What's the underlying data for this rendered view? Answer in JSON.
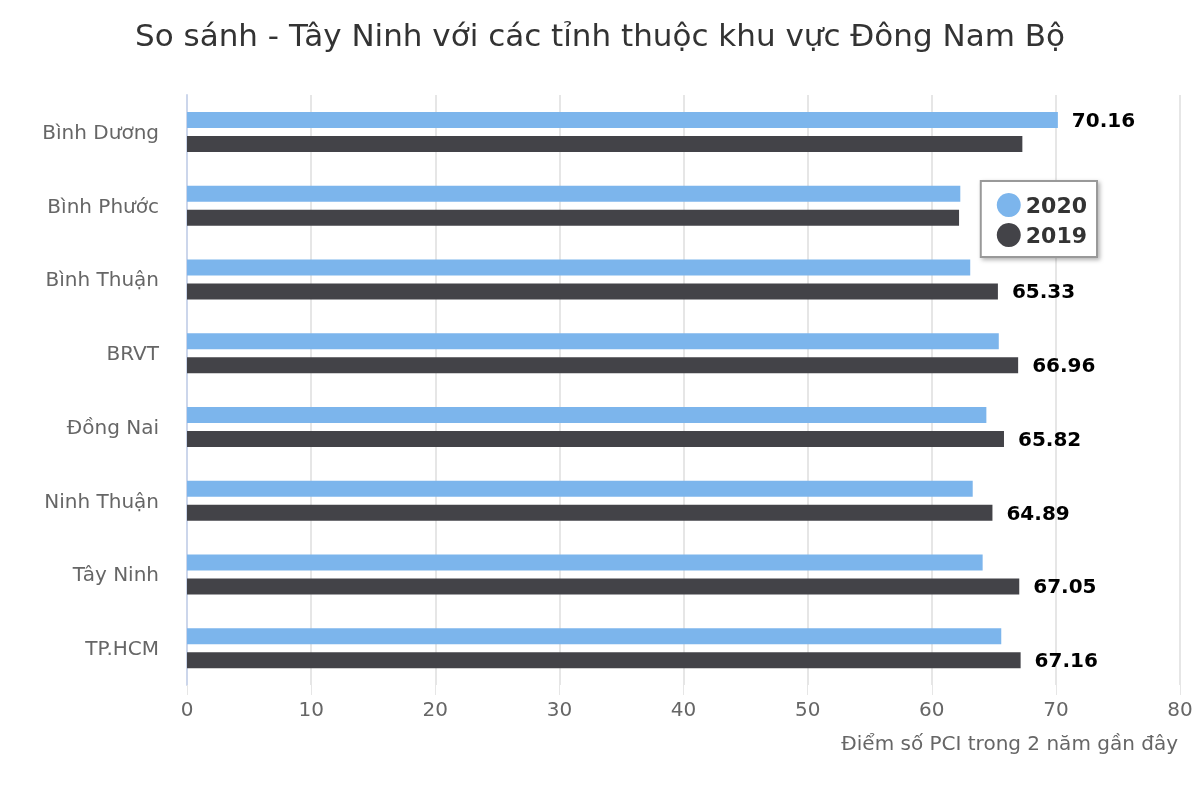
{
  "chart_data": {
    "type": "bar",
    "orientation": "horizontal",
    "title": "So sánh - Tây Ninh với các tỉnh thuộc khu vực Đông Nam Bộ",
    "xlabel": "Điểm số PCI trong 2 năm gần đây",
    "categories": [
      "Bình Dương",
      "Bình Phước",
      "Bình Thuận",
      "BRVT",
      "Đồng Nai",
      "Ninh Thuận",
      "Tây Ninh",
      "TP.HCM"
    ],
    "series": [
      {
        "name": "2020",
        "color": "#7cb5ec",
        "values": [
          70.16,
          62.3,
          63.1,
          65.4,
          64.4,
          63.3,
          64.1,
          65.6
        ],
        "value_labels": [
          "70.16",
          null,
          null,
          null,
          null,
          null,
          null,
          null
        ]
      },
      {
        "name": "2019",
        "color": "#434348",
        "values": [
          67.3,
          62.2,
          65.33,
          66.96,
          65.82,
          64.89,
          67.05,
          67.16
        ],
        "value_labels": [
          null,
          null,
          "65.33",
          "66.96",
          "65.82",
          "64.89",
          "67.05",
          "67.16"
        ]
      }
    ],
    "xlim": [
      0,
      80
    ],
    "xticks": [
      0,
      10,
      20,
      30,
      40,
      50,
      60,
      70,
      80
    ],
    "grid": "x",
    "legend": "top right"
  }
}
